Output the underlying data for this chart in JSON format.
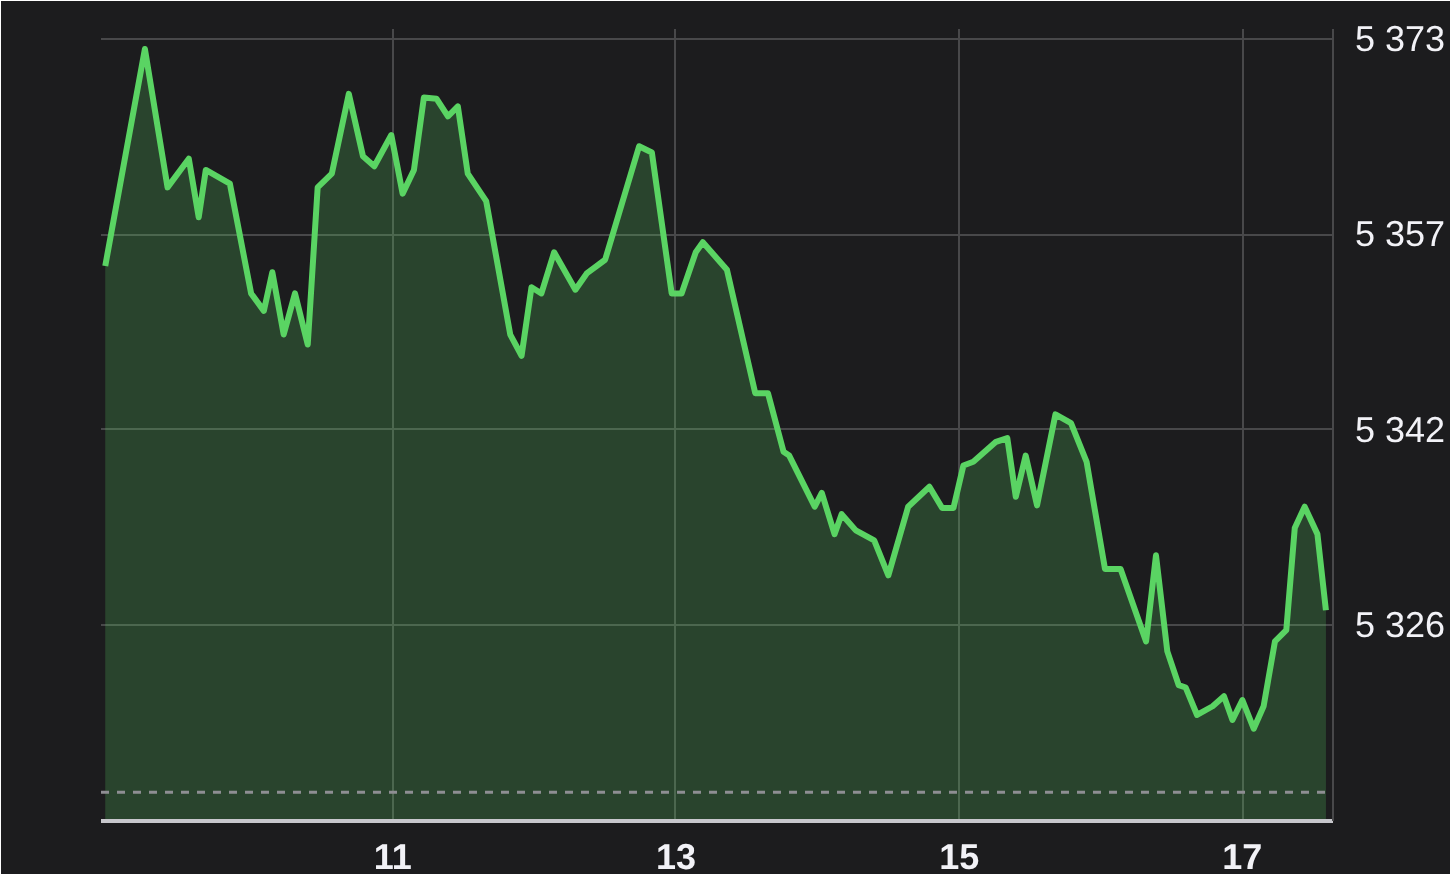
{
  "chart_data": {
    "type": "area",
    "xlim": [
      8.94,
      17.64
    ],
    "ylim": [
      5310.3,
      5373.8
    ],
    "xticks": [
      11,
      13,
      15,
      17
    ],
    "yticks": [
      {
        "value": 5326,
        "label": "5 326"
      },
      {
        "value": 5341.67,
        "label": "5 342"
      },
      {
        "value": 5357.33,
        "label": "5 357"
      },
      {
        "value": 5373,
        "label": "5 373"
      }
    ],
    "grid": true,
    "ref_lines": [
      {
        "axis": "y",
        "value": 5312.6,
        "color": "#8e8e93",
        "line_style": "dashed"
      }
    ],
    "x": [
      8.97,
      9.25,
      9.41,
      9.56,
      9.63,
      9.68,
      9.85,
      10.0,
      10.09,
      10.15,
      10.23,
      10.31,
      10.4,
      10.47,
      10.57,
      10.69,
      10.79,
      10.87,
      10.99,
      11.07,
      11.15,
      11.22,
      11.31,
      11.39,
      11.46,
      11.53,
      11.66,
      11.83,
      11.91,
      11.98,
      12.05,
      12.14,
      12.29,
      12.37,
      12.5,
      12.74,
      12.83,
      12.97,
      13.04,
      13.14,
      13.19,
      13.36,
      13.56,
      13.65,
      13.76,
      13.8,
      13.98,
      14.03,
      14.12,
      14.17,
      14.27,
      14.4,
      14.5,
      14.64,
      14.79,
      14.88,
      14.96,
      15.03,
      15.1,
      15.26,
      15.34,
      15.4,
      15.47,
      15.55,
      15.68,
      15.79,
      15.9,
      15.93,
      16.03,
      16.14,
      16.32,
      16.39,
      16.47,
      16.55,
      16.6,
      16.68,
      16.79,
      16.87,
      16.93,
      17.0,
      17.08,
      17.15,
      17.23,
      17.31,
      17.37,
      17.44,
      17.53,
      17.59
    ],
    "series": [
      {
        "color": "#5ad463",
        "values": [
          5354.8,
          5372.2,
          5361.1,
          5363.4,
          5358.7,
          5362.5,
          5361.4,
          5352.6,
          5351.2,
          5354.3,
          5349.3,
          5352.6,
          5348.5,
          5361.1,
          5362.2,
          5368.6,
          5363.6,
          5362.8,
          5365.3,
          5360.6,
          5362.5,
          5368.3,
          5368.2,
          5366.8,
          5367.6,
          5362.2,
          5360.0,
          5349.3,
          5347.6,
          5353.1,
          5352.6,
          5355.9,
          5352.9,
          5354.2,
          5355.3,
          5364.4,
          5363.9,
          5352.6,
          5352.6,
          5355.9,
          5356.7,
          5354.5,
          5344.6,
          5344.6,
          5339.9,
          5339.6,
          5335.5,
          5336.6,
          5333.3,
          5334.9,
          5333.6,
          5332.8,
          5330.0,
          5335.5,
          5337.1,
          5335.4,
          5335.4,
          5338.8,
          5339.1,
          5340.7,
          5341.0,
          5336.3,
          5339.6,
          5335.6,
          5342.9,
          5342.2,
          5339.1,
          5337.1,
          5330.5,
          5330.5,
          5324.7,
          5331.6,
          5323.9,
          5321.2,
          5321.0,
          5318.8,
          5319.5,
          5320.3,
          5318.4,
          5320.0,
          5317.7,
          5319.5,
          5324.7,
          5325.6,
          5333.8,
          5335.5,
          5333.3,
          5327.2
        ]
      }
    ]
  }
}
